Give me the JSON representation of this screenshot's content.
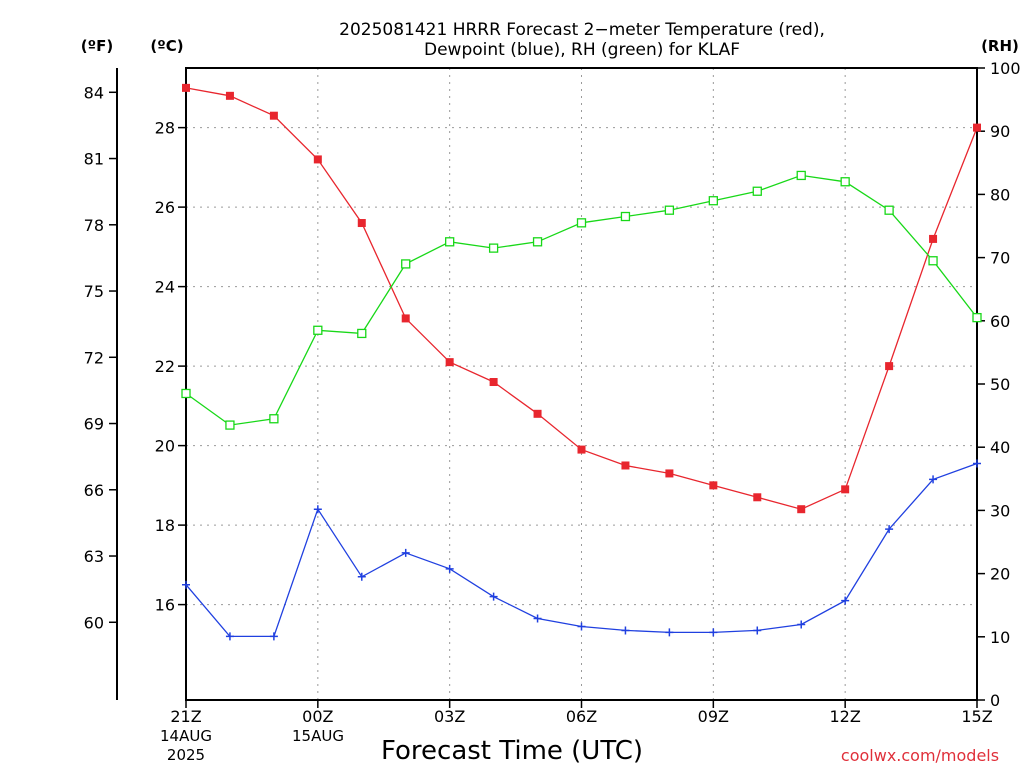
{
  "title_line1": "2025081421 HRRR Forecast 2−meter Temperature (red),",
  "title_line2": "Dewpoint (blue), RH (green) for KLAF",
  "axis_units": {
    "fahrenheit": "(ºF)",
    "celsius": "(ºC)",
    "rh": "(RH)"
  },
  "xlabel": "Forecast Time (UTC)",
  "credit": "coolwx.com/models",
  "date_labels": [
    {
      "tick": "21Z",
      "lines": [
        "14AUG",
        "2025"
      ]
    },
    {
      "tick": "00Z",
      "lines": [
        "15AUG"
      ]
    }
  ],
  "colors": {
    "temperature": "#e8262e",
    "dewpoint": "#2040e0",
    "rh": "#18d818"
  },
  "chart_data": {
    "type": "line",
    "x": [
      "21Z",
      "22Z",
      "23Z",
      "00Z",
      "01Z",
      "02Z",
      "03Z",
      "04Z",
      "05Z",
      "06Z",
      "07Z",
      "08Z",
      "09Z",
      "10Z",
      "11Z",
      "12Z",
      "13Z",
      "14Z",
      "15Z"
    ],
    "x_tick_labels": [
      "21Z",
      "00Z",
      "03Z",
      "06Z",
      "09Z",
      "12Z",
      "15Z"
    ],
    "celsius_ticks": [
      16,
      18,
      20,
      22,
      24,
      26,
      28
    ],
    "celsius_range": [
      13.6,
      29.5
    ],
    "fahrenheit_ticks": [
      60,
      63,
      66,
      69,
      72,
      75,
      78,
      81,
      84
    ],
    "rh_ticks": [
      0,
      10,
      20,
      30,
      40,
      50,
      60,
      70,
      80,
      90,
      100
    ],
    "rh_range": [
      0,
      100
    ],
    "grid": true,
    "series": [
      {
        "name": "Temperature",
        "axis": "celsius",
        "marker": "filled-square",
        "values": [
          29.0,
          28.8,
          28.3,
          27.2,
          25.6,
          23.2,
          22.1,
          21.6,
          20.8,
          19.9,
          19.5,
          19.3,
          19.0,
          18.7,
          18.4,
          18.9,
          22.0,
          25.2,
          28.0
        ]
      },
      {
        "name": "Dewpoint",
        "axis": "celsius",
        "marker": "plus",
        "values": [
          16.5,
          15.2,
          15.2,
          18.4,
          16.7,
          17.3,
          16.9,
          16.2,
          15.65,
          15.45,
          15.35,
          15.3,
          15.3,
          15.35,
          15.5,
          16.1,
          17.9,
          19.15,
          19.55
        ]
      },
      {
        "name": "RH",
        "axis": "rh",
        "marker": "open-square",
        "values": [
          48.5,
          43.5,
          44.5,
          58.5,
          58.0,
          69.0,
          72.5,
          71.5,
          72.5,
          75.5,
          76.5,
          77.5,
          79.0,
          80.5,
          83.0,
          82.0,
          77.5,
          69.5,
          60.5
        ]
      }
    ]
  }
}
